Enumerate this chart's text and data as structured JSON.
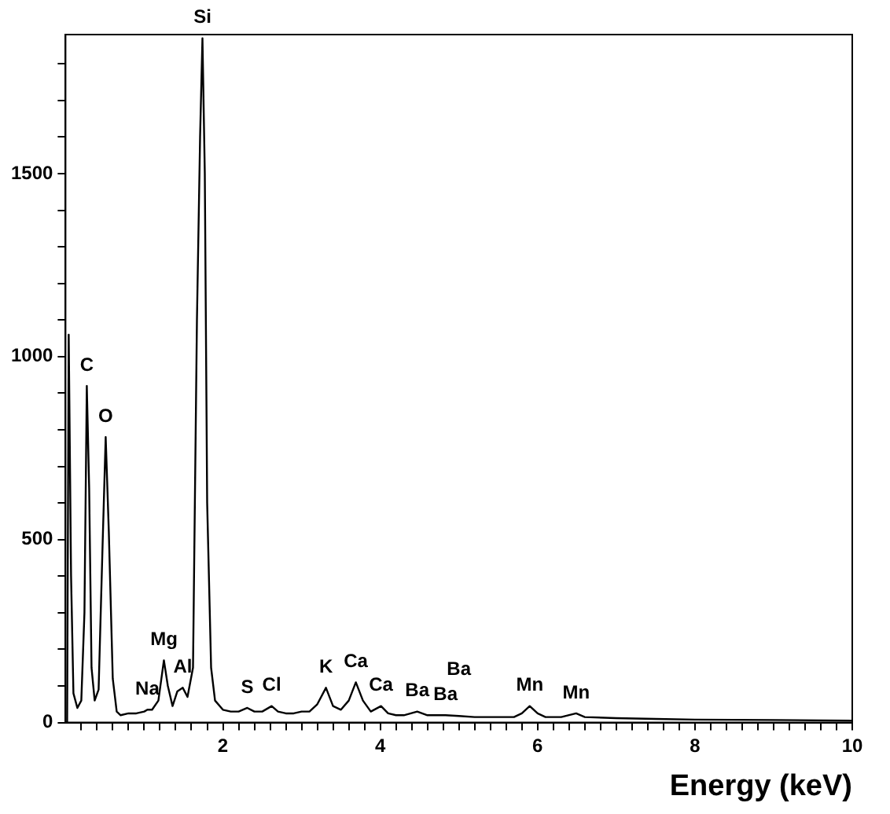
{
  "chart_data": {
    "type": "line",
    "xlabel": "Energy (keV)",
    "x": [
      0,
      0.02,
      0.04,
      0.07,
      0.1,
      0.15,
      0.2,
      0.24,
      0.27,
      0.3,
      0.33,
      0.37,
      0.42,
      0.47,
      0.51,
      0.55,
      0.6,
      0.65,
      0.7,
      0.8,
      0.9,
      1.0,
      1.04,
      1.1,
      1.18,
      1.25,
      1.3,
      1.36,
      1.42,
      1.49,
      1.55,
      1.62,
      1.67,
      1.71,
      1.74,
      1.77,
      1.8,
      1.85,
      1.9,
      2.0,
      2.1,
      2.2,
      2.31,
      2.4,
      2.5,
      2.62,
      2.7,
      2.8,
      2.9,
      3.0,
      3.1,
      3.2,
      3.31,
      3.4,
      3.5,
      3.6,
      3.69,
      3.78,
      3.88,
      4.01,
      4.1,
      4.2,
      4.3,
      4.47,
      4.6,
      4.83,
      5.0,
      5.2,
      5.5,
      5.7,
      5.8,
      5.9,
      6.0,
      6.1,
      6.3,
      6.49,
      6.6,
      7.0,
      7.5,
      8.0,
      9.0,
      10.0
    ],
    "series": [
      {
        "color": "#000000",
        "values": [
          0,
          0,
          1060,
          400,
          80,
          40,
          60,
          300,
          920,
          640,
          150,
          60,
          90,
          480,
          780,
          520,
          120,
          30,
          20,
          25,
          25,
          30,
          35,
          35,
          60,
          170,
          100,
          45,
          85,
          95,
          70,
          150,
          1100,
          1600,
          1870,
          1500,
          600,
          150,
          60,
          35,
          30,
          30,
          40,
          30,
          30,
          45,
          30,
          25,
          25,
          30,
          30,
          50,
          95,
          45,
          35,
          60,
          110,
          60,
          30,
          45,
          25,
          20,
          20,
          30,
          20,
          20,
          18,
          15,
          15,
          15,
          25,
          45,
          25,
          15,
          15,
          25,
          15,
          12,
          10,
          8,
          7,
          5
        ]
      }
    ],
    "xlim": [
      0,
      10
    ],
    "xticks": [
      {
        "value": 0.2,
        "label": null
      },
      {
        "value": 0.4,
        "label": null
      },
      {
        "value": 0.6,
        "label": null
      },
      {
        "value": 0.8,
        "label": null
      },
      {
        "value": 1,
        "label": null
      },
      {
        "value": 1.2,
        "label": null
      },
      {
        "value": 1.4,
        "label": null
      },
      {
        "value": 1.6,
        "label": null
      },
      {
        "value": 1.8,
        "label": null
      },
      2,
      {
        "value": 2.2,
        "label": null
      },
      {
        "value": 2.4,
        "label": null
      },
      {
        "value": 2.6,
        "label": null
      },
      {
        "value": 2.8,
        "label": null
      },
      {
        "value": 3,
        "label": null
      },
      {
        "value": 3.2,
        "label": null
      },
      {
        "value": 3.4,
        "label": null
      },
      {
        "value": 3.6,
        "label": null
      },
      {
        "value": 3.8,
        "label": null
      },
      4,
      {
        "value": 4.2,
        "label": null
      },
      {
        "value": 4.4,
        "label": null
      },
      {
        "value": 4.6,
        "label": null
      },
      {
        "value": 4.8,
        "label": null
      },
      {
        "value": 5,
        "label": null
      },
      {
        "value": 5.2,
        "label": null
      },
      {
        "value": 5.4,
        "label": null
      },
      {
        "value": 5.6,
        "label": null
      },
      {
        "value": 5.8,
        "label": null
      },
      6,
      {
        "value": 6.2,
        "label": null
      },
      {
        "value": 6.4,
        "label": null
      },
      {
        "value": 6.6,
        "label": null
      },
      {
        "value": 6.8,
        "label": null
      },
      {
        "value": 7,
        "label": null
      },
      {
        "value": 7.2,
        "label": null
      },
      {
        "value": 7.4,
        "label": null
      },
      {
        "value": 7.6,
        "label": null
      },
      {
        "value": 7.8,
        "label": null
      },
      8,
      {
        "value": 8.2,
        "label": null
      },
      {
        "value": 8.4,
        "label": null
      },
      {
        "value": 8.6,
        "label": null
      },
      {
        "value": 8.8,
        "label": null
      },
      {
        "value": 9,
        "label": null
      },
      {
        "value": 9.2,
        "label": null
      },
      {
        "value": 9.4,
        "label": null
      },
      {
        "value": 9.6,
        "label": null
      },
      {
        "value": 9.8,
        "label": null
      },
      10
    ],
    "ylim": [
      0,
      1880
    ],
    "yticks": [
      0,
      {
        "value": 100,
        "label": null
      },
      {
        "value": 200,
        "label": null
      },
      {
        "value": 300,
        "label": null
      },
      {
        "value": 400,
        "label": null
      },
      500,
      {
        "value": 600,
        "label": null
      },
      {
        "value": 700,
        "label": null
      },
      {
        "value": 800,
        "label": null
      },
      {
        "value": 900,
        "label": null
      },
      1000,
      {
        "value": 1100,
        "label": null
      },
      {
        "value": 1200,
        "label": null
      },
      {
        "value": 1300,
        "label": null
      },
      {
        "value": 1400,
        "label": null
      },
      1500,
      {
        "value": 1600,
        "label": null
      },
      {
        "value": 1700,
        "label": null
      },
      {
        "value": 1800,
        "label": null
      }
    ],
    "grid": false,
    "legend": false,
    "marker": "none",
    "line_style": "solid",
    "annotations": [
      {
        "text": "C",
        "x": 0.27,
        "y": 920
      },
      {
        "text": "O",
        "x": 0.51,
        "y": 780
      },
      {
        "text": "Si",
        "x": 1.74,
        "y": 1870
      },
      {
        "text": "Na",
        "x": 1.04,
        "y": 35
      },
      {
        "text": "Mg",
        "x": 1.25,
        "y": 170
      },
      {
        "text": "Al",
        "x": 1.49,
        "y": 95
      },
      {
        "text": "S",
        "x": 2.31,
        "y": 40
      },
      {
        "text": "Cl",
        "x": 2.62,
        "y": 45
      },
      {
        "text": "K",
        "x": 3.31,
        "y": 95
      },
      {
        "text": "Ca",
        "x": 3.69,
        "y": 110
      },
      {
        "text": "Ca",
        "x": 4.01,
        "y": 45
      },
      {
        "text": "Ba",
        "x": 4.47,
        "y": 30
      },
      {
        "text": "Ba",
        "x": 4.83,
        "y": 20
      },
      {
        "text": "Ba",
        "x": 5.0,
        "y": 18
      },
      {
        "text": "Mn",
        "x": 5.9,
        "y": 45
      },
      {
        "text": "Mn",
        "x": 6.49,
        "y": 25
      }
    ]
  }
}
